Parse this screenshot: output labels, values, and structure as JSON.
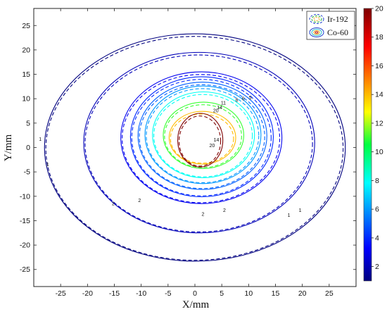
{
  "chart_data": {
    "type": "contour",
    "title": "",
    "xlabel": "X/mm",
    "ylabel": "Y/mm",
    "xlim": [
      -30,
      30
    ],
    "ylim": [
      -28.5,
      28.5
    ],
    "x_ticks": [
      -25,
      -20,
      -15,
      -10,
      -5,
      0,
      5,
      10,
      15,
      20,
      25
    ],
    "y_ticks": [
      -25,
      -20,
      -15,
      -10,
      -5,
      0,
      5,
      10,
      15,
      20,
      25
    ],
    "series": [
      {
        "name": "Ir-192",
        "line": "dashed"
      },
      {
        "name": "Co-60",
        "line": "solid"
      }
    ],
    "colorbar": {
      "min": 1,
      "max": 20,
      "ticks": [
        2,
        4,
        6,
        8,
        10,
        12,
        14,
        16,
        18,
        20
      ]
    },
    "contours": [
      {
        "level": 1,
        "center": [
          0,
          0
        ],
        "rx": 28.0,
        "ry": 23.3
      },
      {
        "level": 2,
        "center": [
          0.8,
          1.0
        ],
        "rx": 21.5,
        "ry": 18.5
      },
      {
        "level": 3,
        "center": [
          1.2,
          2.0
        ],
        "rx": 15.0,
        "ry": 13.5
      },
      {
        "level": 4,
        "center": [
          1.3,
          2.2
        ],
        "rx": 13.3,
        "ry": 12.3
      },
      {
        "level": 5,
        "center": [
          1.4,
          2.4
        ],
        "rx": 12.0,
        "ry": 11.0
      },
      {
        "level": 6,
        "center": [
          1.5,
          2.6
        ],
        "rx": 10.8,
        "ry": 10.0
      },
      {
        "level": 8,
        "center": [
          1.6,
          2.6
        ],
        "rx": 9.5,
        "ry": 8.8
      },
      {
        "level": 11,
        "center": [
          1.6,
          2.5
        ],
        "rx": 7.5,
        "ry": 6.8
      },
      {
        "level": 14,
        "center": [
          1.4,
          2.0
        ],
        "rx": 6.2,
        "ry": 5.4
      },
      {
        "level": 20,
        "center": [
          1.0,
          1.5
        ],
        "rx": 4.2,
        "ry": 5.5
      }
    ],
    "contour_labels": [
      {
        "text": "1",
        "x": -28.8,
        "y": 1.4
      },
      {
        "text": "1",
        "x": -27.4,
        "y": -3.8
      },
      {
        "text": "1",
        "x": 17.5,
        "y": -14.2
      },
      {
        "text": "1",
        "x": 19.6,
        "y": -13.2
      },
      {
        "text": "2",
        "x": -15.2,
        "y": -11.8
      },
      {
        "text": "2",
        "x": -10.3,
        "y": -11.2
      },
      {
        "text": "2",
        "x": 1.5,
        "y": -14.0
      },
      {
        "text": "2",
        "x": 5.5,
        "y": -13.2
      },
      {
        "text": "5",
        "x": 10.3,
        "y": 9.9
      },
      {
        "text": "6",
        "x": 9.0,
        "y": 9.7
      },
      {
        "text": "8",
        "x": 7.8,
        "y": 9.4
      },
      {
        "text": "11",
        "x": 5.3,
        "y": 8.8
      },
      {
        "text": "14",
        "x": 4.6,
        "y": 7.9
      },
      {
        "text": "20",
        "x": 3.9,
        "y": 7.2
      },
      {
        "text": "14",
        "x": 4.0,
        "y": 1.2
      },
      {
        "text": "20",
        "x": 3.2,
        "y": 0.1
      }
    ]
  }
}
